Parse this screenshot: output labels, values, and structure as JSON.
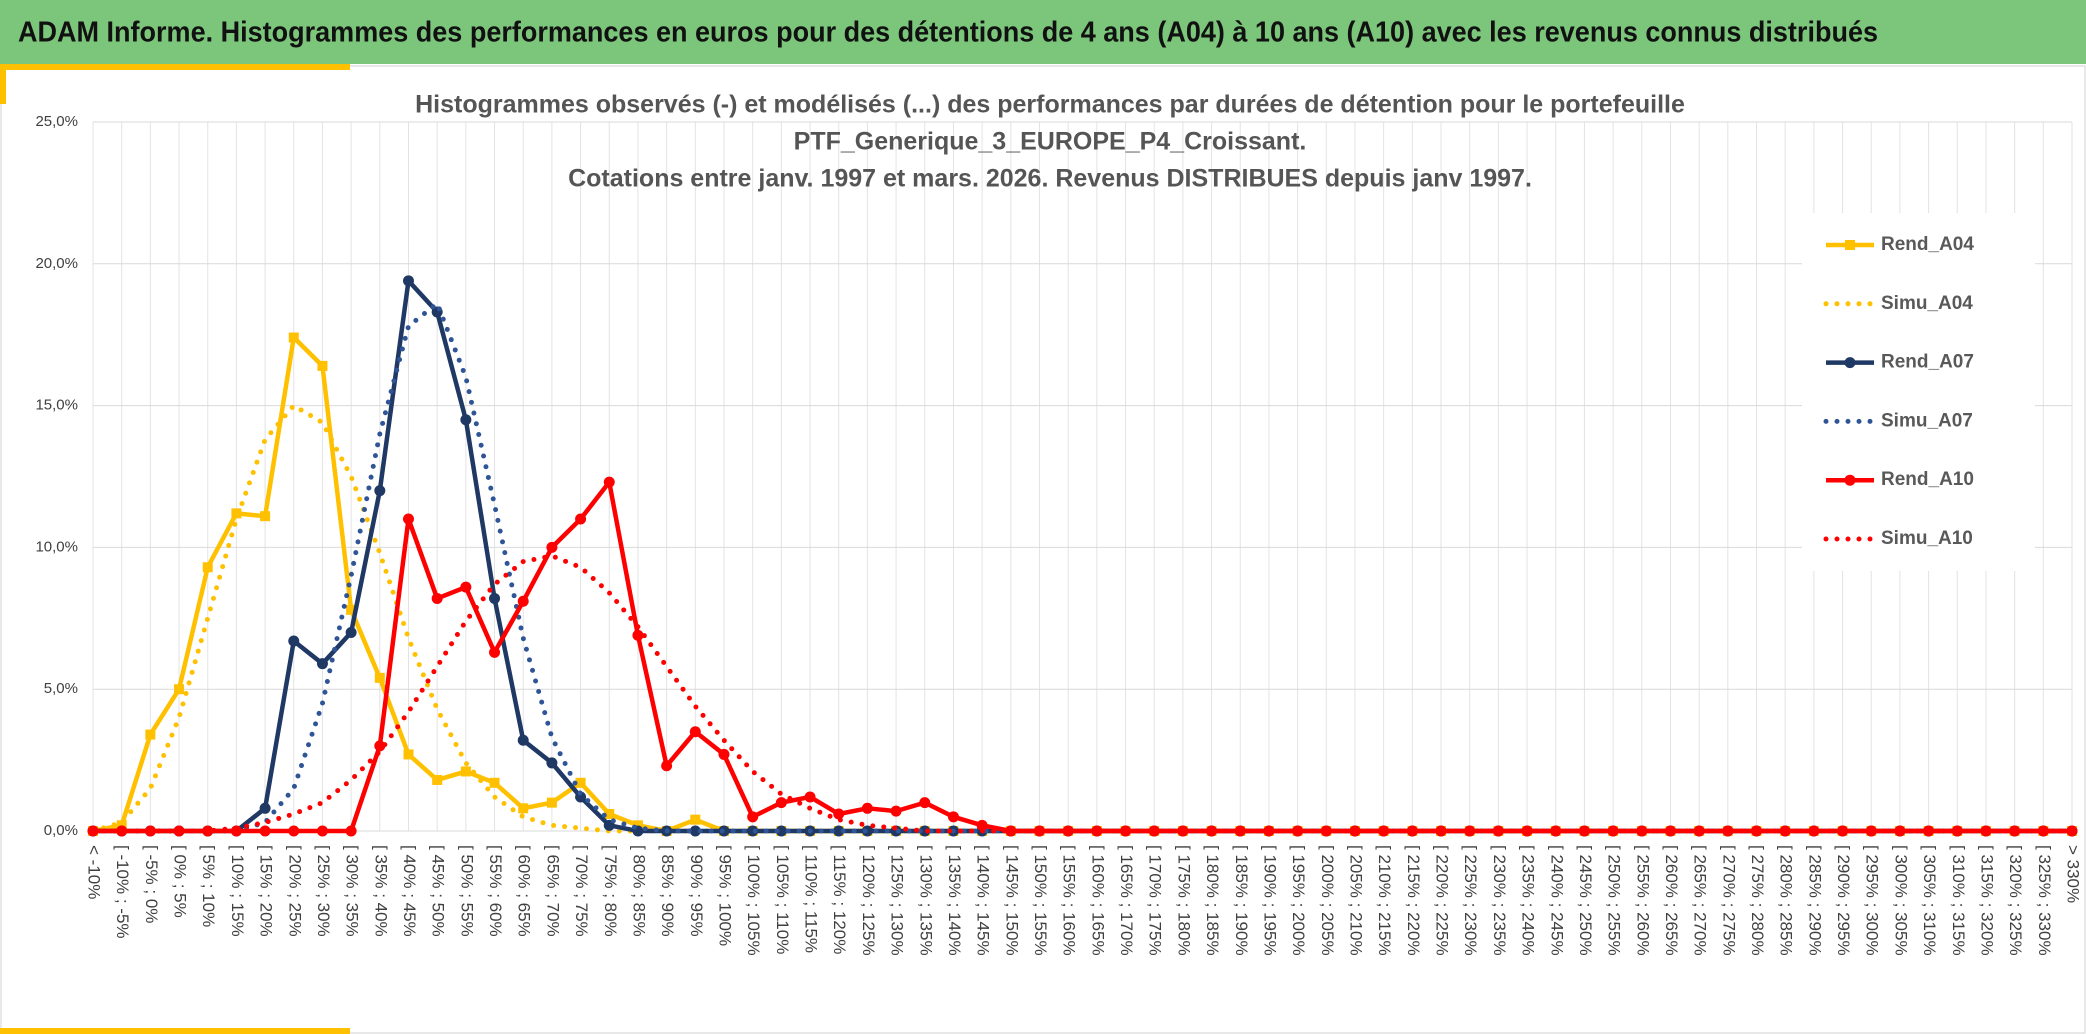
{
  "header": {
    "title": "ADAM Informe. Histogrammes des performances en euros pour des détentions de 4 ans (A04) à 10 ans (A10) avec les revenus connus distribués"
  },
  "chart_data": {
    "type": "line",
    "title": [
      "Histogrammes observés (-) et modélisés (...) des performances par durées de détention pour le portefeuille",
      "PTF_Generique_3_EUROPE_P4_Croissant.",
      "Cotations entre janv. 1997 et mars. 2026. Revenus DISTRIBUES depuis janv 1997."
    ],
    "categories": [
      "< -10%",
      "[ -10% ; -5%",
      "[ -5% ; 0%",
      "[ 0% ; 5%",
      "[ 5% ; 10%",
      "[ 10% ; 15%",
      "[ 15% ; 20%",
      "[ 20% ; 25%",
      "[ 25% ; 30%",
      "[ 30% ; 35%",
      "[ 35% ; 40%",
      "[ 40% ; 45%",
      "[ 45% ; 50%",
      "[ 50% ; 55%",
      "[ 55% ; 60%",
      "[ 60% ; 65%",
      "[ 65% ; 70%",
      "[ 70% ; 75%",
      "[ 75% ; 80%",
      "[ 80% ; 85%",
      "[ 85% ; 90%",
      "[ 90% ; 95%",
      "[ 95% ; 100%",
      "[ 100% ; 105%",
      "[ 105% ; 110%",
      "[ 110% ; 115%",
      "[ 115% ; 120%",
      "[ 120% ; 125%",
      "[ 125% ; 130%",
      "[ 130% ; 135%",
      "[ 135% ; 140%",
      "[ 140% ; 145%",
      "[ 145% ; 150%",
      "[ 150% ; 155%",
      "[ 155% ; 160%",
      "[ 160% ; 165%",
      "[ 165% ; 170%",
      "[ 170% ; 175%",
      "[ 175% ; 180%",
      "[ 180% ; 185%",
      "[ 185% ; 190%",
      "[ 190% ; 195%",
      "[ 195% ; 200%",
      "[ 200% ; 205%",
      "[ 205% ; 210%",
      "[ 210% ; 215%",
      "[ 215% ; 220%",
      "[ 220% ; 225%",
      "[ 225% ; 230%",
      "[ 230% ; 235%",
      "[ 235% ; 240%",
      "[ 240% ; 245%",
      "[ 245% ; 250%",
      "[ 250% ; 255%",
      "[ 255% ; 260%",
      "[ 260% ; 265%",
      "[ 265% ; 270%",
      "[ 270% ; 275%",
      "[ 275% ; 280%",
      "[ 280% ; 285%",
      "[ 285% ; 290%",
      "[ 290% ; 295%",
      "[ 295% ; 300%",
      "[ 300% ; 305%",
      "[ 305% ; 310%",
      "[ 310% ; 315%",
      "[ 315% ; 320%",
      "[ 320% ; 325%",
      "[ 325% ; 330%",
      "> 330%"
    ],
    "series": [
      {
        "name": "Rend_A04",
        "color": "#ffc000",
        "dash": false,
        "marker": "square",
        "values": [
          0,
          0.2,
          3.4,
          5.0,
          9.3,
          11.2,
          11.1,
          17.4,
          16.4,
          7.8,
          5.4,
          2.7,
          1.8,
          2.1,
          1.7,
          0.8,
          1.0,
          1.7,
          0.6,
          0.2,
          0,
          0.4,
          0,
          0,
          0,
          0,
          0,
          0,
          0,
          0,
          0,
          0,
          0,
          0,
          0,
          0,
          0,
          0,
          0,
          0,
          0,
          0,
          0,
          0,
          0,
          0,
          0,
          0,
          0,
          0,
          0,
          0,
          0,
          0,
          0,
          0,
          0,
          0,
          0,
          0,
          0,
          0,
          0,
          0,
          0,
          0,
          0,
          0,
          0,
          0
        ]
      },
      {
        "name": "Simu_A04",
        "color": "#ffc000",
        "dash": true,
        "marker": "none",
        "values": [
          0,
          0.3,
          1.5,
          4.0,
          7.5,
          11,
          13.8,
          15.0,
          14.4,
          12.5,
          9.8,
          6.8,
          4.3,
          2.4,
          1.2,
          0.5,
          0.2,
          0.1,
          0,
          0,
          0,
          0,
          0,
          0,
          0,
          0,
          0,
          0,
          0,
          0,
          0,
          0,
          0,
          0,
          0,
          0,
          0,
          0,
          0,
          0,
          0,
          0,
          0,
          0,
          0,
          0,
          0,
          0,
          0,
          0,
          0,
          0,
          0,
          0,
          0,
          0,
          0,
          0,
          0,
          0,
          0,
          0,
          0,
          0,
          0,
          0,
          0,
          0,
          0,
          0
        ]
      },
      {
        "name": "Rend_A07",
        "color": "#1f3864",
        "dash": false,
        "marker": "circle",
        "values": [
          0,
          0,
          0,
          0,
          0,
          0,
          0.8,
          6.7,
          5.9,
          7.0,
          12.0,
          19.4,
          18.3,
          14.5,
          8.2,
          3.2,
          2.4,
          1.2,
          0.2,
          0,
          0,
          0,
          0,
          0,
          0,
          0,
          0,
          0,
          0,
          0,
          0,
          0,
          0,
          0,
          0,
          0,
          0,
          0,
          0,
          0,
          0,
          0,
          0,
          0,
          0,
          0,
          0,
          0,
          0,
          0,
          0,
          0,
          0,
          0,
          0,
          0,
          0,
          0,
          0,
          0,
          0,
          0,
          0,
          0,
          0,
          0,
          0,
          0,
          0,
          0
        ]
      },
      {
        "name": "Simu_A07",
        "color": "#2f5597",
        "dash": true,
        "marker": "none",
        "values": [
          0,
          0,
          0,
          0,
          0,
          0,
          0.3,
          1.5,
          4.5,
          9.0,
          14.0,
          17.8,
          18.6,
          16.0,
          11.5,
          6.8,
          3.3,
          1.3,
          0.4,
          0.1,
          0,
          0,
          0,
          0,
          0,
          0,
          0,
          0,
          0,
          0,
          0,
          0,
          0,
          0,
          0,
          0,
          0,
          0,
          0,
          0,
          0,
          0,
          0,
          0,
          0,
          0,
          0,
          0,
          0,
          0,
          0,
          0,
          0,
          0,
          0,
          0,
          0,
          0,
          0,
          0,
          0,
          0,
          0,
          0,
          0,
          0,
          0,
          0,
          0,
          0
        ]
      },
      {
        "name": "Rend_A10",
        "color": "#ff0000",
        "dash": false,
        "marker": "circle",
        "values": [
          0,
          0,
          0,
          0,
          0,
          0,
          0,
          0,
          0,
          0,
          3.0,
          11.0,
          8.2,
          8.6,
          6.3,
          8.1,
          10.0,
          11.0,
          12.3,
          6.9,
          2.3,
          3.5,
          2.7,
          0.5,
          1.0,
          1.2,
          0.6,
          0.8,
          0.7,
          1.0,
          0.5,
          0.2,
          0,
          0,
          0,
          0,
          0,
          0,
          0,
          0,
          0,
          0,
          0,
          0,
          0,
          0,
          0,
          0,
          0,
          0,
          0,
          0,
          0,
          0,
          0,
          0,
          0,
          0,
          0,
          0,
          0,
          0,
          0,
          0,
          0,
          0,
          0,
          0,
          0,
          0
        ]
      },
      {
        "name": "Simu_A10",
        "color": "#ff0000",
        "dash": true,
        "marker": "none",
        "values": [
          0,
          0,
          0,
          0,
          0,
          0.1,
          0.3,
          0.6,
          1.0,
          1.8,
          2.8,
          4.2,
          5.8,
          7.4,
          8.7,
          9.5,
          9.7,
          9.3,
          8.4,
          7.2,
          5.8,
          4.4,
          3.2,
          2.1,
          1.3,
          0.8,
          0.4,
          0.2,
          0.1,
          0,
          0,
          0,
          0,
          0,
          0,
          0,
          0,
          0,
          0,
          0,
          0,
          0,
          0,
          0,
          0,
          0,
          0,
          0,
          0,
          0,
          0,
          0,
          0,
          0,
          0,
          0,
          0,
          0,
          0,
          0,
          0,
          0,
          0,
          0,
          0,
          0,
          0,
          0,
          0,
          0
        ]
      }
    ],
    "ylim": [
      0,
      25
    ],
    "yticks": [
      {
        "value": 0,
        "label": "0,0%"
      },
      {
        "value": 5,
        "label": "5,0%"
      },
      {
        "value": 10,
        "label": "10,0%"
      },
      {
        "value": 15,
        "label": "15,0%"
      },
      {
        "value": 20,
        "label": "20,0%"
      },
      {
        "value": 25,
        "label": "25,0%"
      }
    ],
    "grid": true,
    "legend": "right"
  }
}
